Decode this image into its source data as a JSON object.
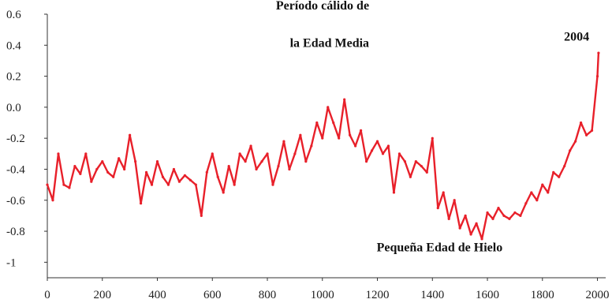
{
  "chart_data": {
    "type": "line",
    "title": "",
    "xlabel": "",
    "ylabel": "",
    "xlim": [
      0,
      2030
    ],
    "ylim": [
      -1.1,
      0.6
    ],
    "grid": false,
    "x_ticks": [
      "0",
      "200",
      "400",
      "600",
      "800",
      "1000",
      "1200",
      "1400",
      "1600",
      "1800",
      "2000"
    ],
    "y_ticks": [
      "0.6",
      "0.4",
      "0.2",
      "0.0",
      "-0.2",
      "-0.4",
      "-0.6",
      "-0.8",
      "-1"
    ],
    "x_tick_values": [
      0,
      200,
      400,
      600,
      800,
      1000,
      1200,
      1400,
      1600,
      1800,
      2000
    ],
    "y_tick_values": [
      0.6,
      0.4,
      0.2,
      0.0,
      -0.2,
      -0.4,
      -0.6,
      -0.8,
      -1.0
    ],
    "annotations": [
      {
        "text": "Período cálido de",
        "x": 1170,
        "y": 0.63
      },
      {
        "text": "la Edad Media",
        "x": 1170,
        "y": 0.39
      },
      {
        "text": "2004",
        "x": 1970,
        "y": 0.43
      },
      {
        "text": "Pequeña Edad de Hielo",
        "x": 1655,
        "y": -0.93
      }
    ],
    "series": [
      {
        "color": "#e8202a",
        "x": [
          0,
          20,
          40,
          60,
          80,
          100,
          120,
          140,
          160,
          180,
          200,
          220,
          240,
          260,
          280,
          300,
          320,
          340,
          360,
          380,
          400,
          420,
          440,
          460,
          480,
          500,
          520,
          540,
          560,
          580,
          600,
          620,
          640,
          660,
          680,
          700,
          720,
          740,
          760,
          780,
          800,
          820,
          840,
          860,
          880,
          900,
          920,
          940,
          960,
          980,
          1000,
          1020,
          1040,
          1060,
          1080,
          1100,
          1120,
          1140,
          1160,
          1180,
          1200,
          1220,
          1240,
          1260,
          1280,
          1300,
          1320,
          1340,
          1360,
          1380,
          1400,
          1420,
          1440,
          1460,
          1480,
          1500,
          1520,
          1540,
          1560,
          1580,
          1600,
          1620,
          1640,
          1660,
          1680,
          1700,
          1720,
          1740,
          1760,
          1780,
          1800,
          1820,
          1840,
          1860,
          1880,
          1900,
          1920,
          1940,
          1960,
          1980,
          2000,
          2004
        ],
        "values": [
          -0.5,
          -0.6,
          -0.3,
          -0.5,
          -0.52,
          -0.38,
          -0.43,
          -0.3,
          -0.48,
          -0.4,
          -0.35,
          -0.42,
          -0.45,
          -0.33,
          -0.4,
          -0.18,
          -0.35,
          -0.62,
          -0.42,
          -0.5,
          -0.35,
          -0.45,
          -0.5,
          -0.4,
          -0.48,
          -0.44,
          -0.47,
          -0.5,
          -0.7,
          -0.42,
          -0.3,
          -0.45,
          -0.55,
          -0.38,
          -0.5,
          -0.3,
          -0.35,
          -0.25,
          -0.4,
          -0.35,
          -0.3,
          -0.5,
          -0.38,
          -0.22,
          -0.4,
          -0.3,
          -0.18,
          -0.35,
          -0.25,
          -0.1,
          -0.2,
          0.0,
          -0.1,
          -0.2,
          0.05,
          -0.18,
          -0.25,
          -0.15,
          -0.35,
          -0.28,
          -0.22,
          -0.3,
          -0.25,
          -0.55,
          -0.3,
          -0.35,
          -0.45,
          -0.35,
          -0.38,
          -0.42,
          -0.2,
          -0.65,
          -0.55,
          -0.72,
          -0.6,
          -0.78,
          -0.7,
          -0.82,
          -0.75,
          -0.85,
          -0.68,
          -0.72,
          -0.65,
          -0.7,
          -0.72,
          -0.68,
          -0.7,
          -0.62,
          -0.55,
          -0.6,
          -0.5,
          -0.55,
          -0.42,
          -0.45,
          -0.38,
          -0.28,
          -0.22,
          -0.1,
          -0.18,
          -0.15,
          0.2,
          0.35
        ]
      }
    ]
  }
}
